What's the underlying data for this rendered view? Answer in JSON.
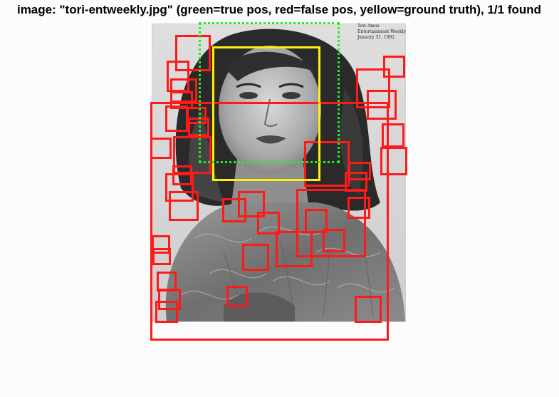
{
  "plot": {
    "title": "image: \"tori-entweekly.jpg\" (green=true pos, red=false pos, yellow=ground truth), 1/1 found"
  },
  "image": {
    "description_icon": "grayscale-portrait-photo",
    "caption_lines": [
      "Tori Amos",
      "Entertainment Weekly",
      "January 31, 1992"
    ]
  },
  "legend": {
    "true_positive_color": "#22ee22",
    "false_positive_color": "#ff1a1a",
    "ground_truth_color": "#ffee11"
  }
}
